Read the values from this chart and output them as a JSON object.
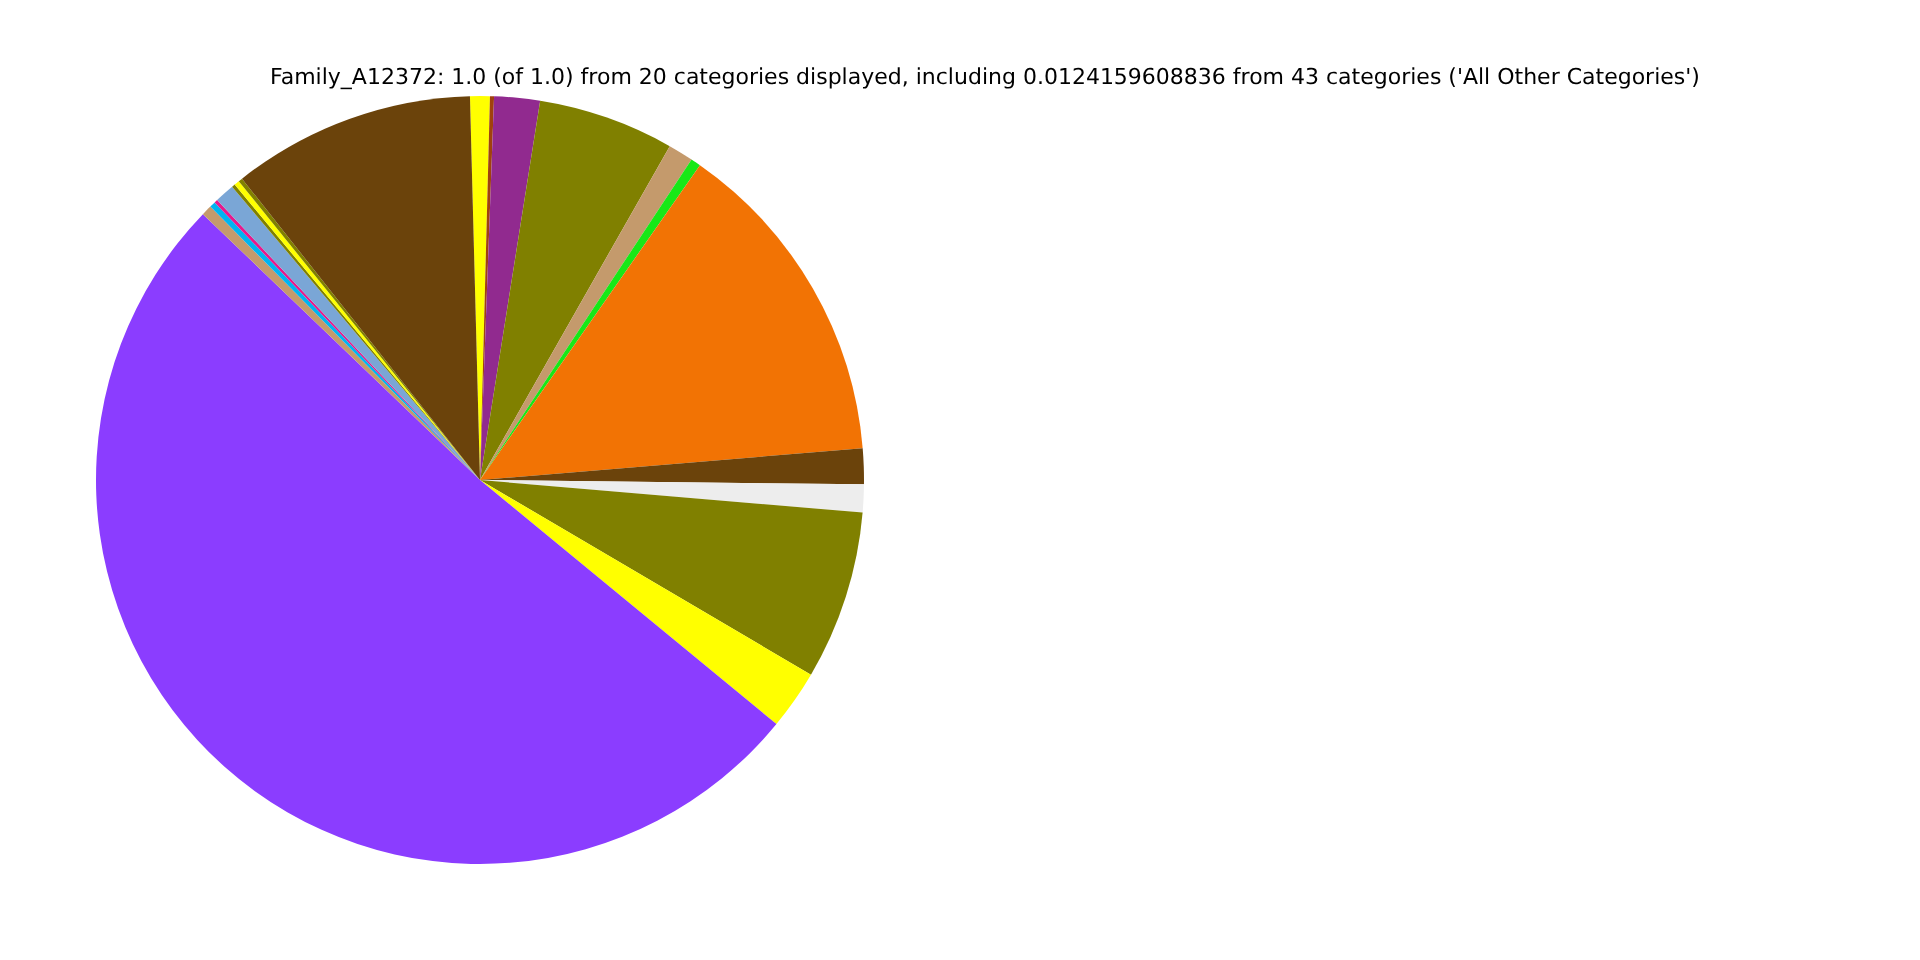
{
  "chart_data": {
    "type": "pie",
    "title": "Family_A12372: 1.0 (of 1.0) from 20 categories displayed, including 0.0124159608836 from 43 categories ('All Other Categories')",
    "categories": [
      null,
      null,
      null,
      null,
      null,
      null,
      null,
      null,
      null,
      null,
      null,
      null,
      null,
      null,
      null,
      null,
      null,
      null,
      null,
      null
    ],
    "values": [
      0.83,
      0.17,
      1.92,
      5.72,
      1.06,
      0.42,
      13.97,
      1.5,
      1.17,
      7.11,
      2.5,
      51.19,
      0.44,
      0.25,
      0.14,
      0.83,
      0.14,
      0.22,
      0.17,
      10.22
    ],
    "colors": [
      "#ffff00",
      "#a0410d",
      "#912a8f",
      "#808000",
      "#c49a6c",
      "#17e817",
      "#f27304",
      "#6b430b",
      "#ededed",
      "#808000",
      "#ffff00",
      "#8b3dff",
      "#c49a6c",
      "#00b4f0",
      "#e6198c",
      "#7aa6d6",
      "#808000",
      "#ffff00",
      "#808000",
      "#6b430b"
    ],
    "legend": false
  }
}
